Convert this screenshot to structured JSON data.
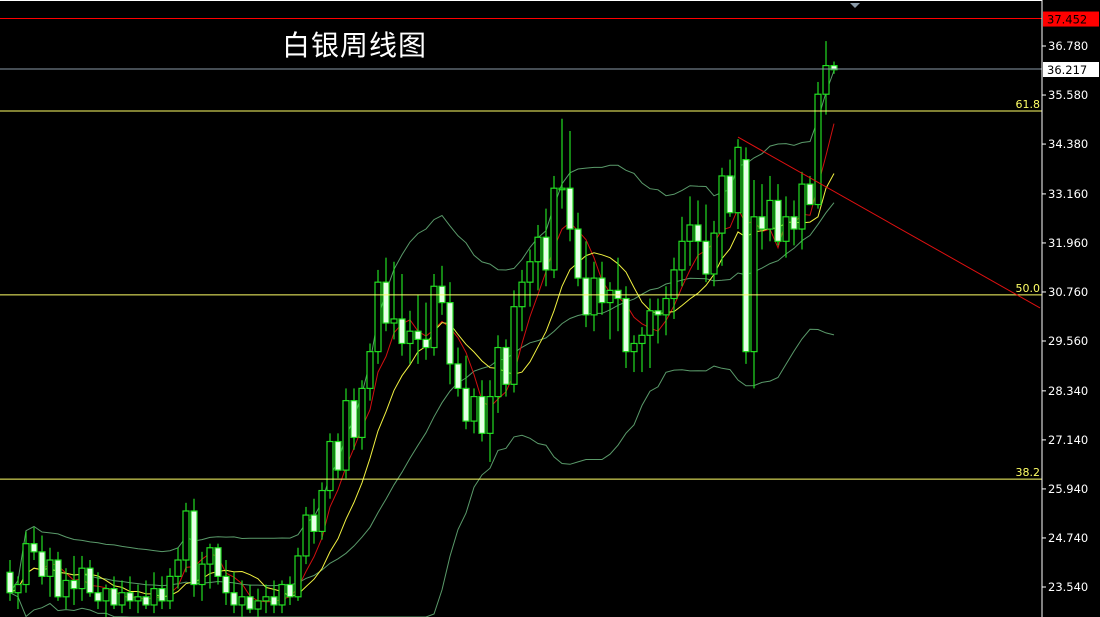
{
  "chart_data": {
    "type": "candlestick",
    "title": "白银周线图",
    "ylim": [
      22.8,
      37.9
    ],
    "grid": false,
    "yticks": [
      "36.780",
      "35.580",
      "34.380",
      "33.160",
      "31.960",
      "30.760",
      "29.560",
      "28.340",
      "27.140",
      "25.940",
      "24.740",
      "23.540"
    ],
    "ohlc": [
      [
        23.9,
        24.2,
        23.2,
        23.4
      ],
      [
        23.4,
        23.8,
        23.0,
        23.6
      ],
      [
        23.6,
        24.9,
        23.4,
        24.6
      ],
      [
        24.6,
        25.0,
        24.2,
        24.4
      ],
      [
        24.4,
        24.8,
        23.6,
        23.8
      ],
      [
        23.8,
        24.5,
        23.3,
        24.2
      ],
      [
        24.2,
        24.4,
        23.2,
        23.3
      ],
      [
        23.3,
        24.0,
        23.0,
        23.7
      ],
      [
        23.7,
        24.3,
        23.1,
        23.5
      ],
      [
        23.5,
        24.3,
        23.2,
        24.0
      ],
      [
        24.0,
        24.2,
        23.3,
        23.4
      ],
      [
        23.4,
        23.9,
        23.0,
        23.2
      ],
      [
        23.2,
        23.6,
        22.8,
        23.5
      ],
      [
        23.5,
        23.8,
        23.0,
        23.1
      ],
      [
        23.1,
        23.7,
        22.9,
        23.4
      ],
      [
        23.4,
        23.8,
        23.0,
        23.2
      ],
      [
        23.2,
        23.6,
        22.9,
        23.3
      ],
      [
        23.3,
        23.7,
        23.0,
        23.1
      ],
      [
        23.1,
        23.9,
        22.9,
        23.5
      ],
      [
        23.5,
        23.8,
        23.0,
        23.2
      ],
      [
        23.2,
        24.0,
        23.0,
        23.8
      ],
      [
        23.8,
        24.5,
        23.5,
        24.2
      ],
      [
        24.2,
        25.6,
        23.9,
        25.4
      ],
      [
        25.4,
        25.7,
        23.3,
        23.6
      ],
      [
        23.6,
        24.4,
        23.2,
        24.1
      ],
      [
        24.1,
        24.6,
        23.5,
        24.5
      ],
      [
        24.5,
        24.6,
        23.6,
        23.8
      ],
      [
        23.8,
        24.2,
        23.1,
        23.4
      ],
      [
        23.4,
        23.9,
        22.9,
        23.1
      ],
      [
        23.1,
        23.7,
        22.8,
        23.3
      ],
      [
        23.3,
        23.6,
        22.9,
        23.0
      ],
      [
        23.0,
        23.5,
        22.7,
        23.2
      ],
      [
        23.2,
        23.6,
        22.9,
        23.3
      ],
      [
        23.3,
        23.7,
        22.9,
        23.1
      ],
      [
        23.1,
        23.7,
        22.9,
        23.6
      ],
      [
        23.6,
        23.8,
        23.1,
        23.3
      ],
      [
        23.3,
        24.5,
        23.2,
        24.3
      ],
      [
        24.3,
        25.5,
        24.1,
        25.3
      ],
      [
        25.3,
        25.7,
        24.6,
        24.9
      ],
      [
        24.9,
        26.1,
        24.7,
        25.9
      ],
      [
        25.9,
        27.3,
        25.7,
        27.1
      ],
      [
        27.1,
        27.3,
        26.2,
        26.4
      ],
      [
        26.4,
        28.4,
        26.2,
        28.1
      ],
      [
        28.1,
        28.4,
        26.9,
        27.2
      ],
      [
        27.2,
        28.6,
        26.9,
        28.4
      ],
      [
        28.4,
        29.5,
        28.1,
        29.3
      ],
      [
        29.3,
        31.3,
        29.0,
        31.0
      ],
      [
        31.0,
        31.6,
        29.8,
        30.0
      ],
      [
        30.0,
        31.5,
        29.6,
        30.1
      ],
      [
        30.1,
        31.2,
        29.2,
        29.5
      ],
      [
        29.5,
        30.3,
        29.0,
        29.8
      ],
      [
        29.8,
        30.7,
        29.0,
        29.6
      ],
      [
        29.6,
        30.5,
        29.1,
        29.4
      ],
      [
        29.4,
        31.2,
        29.2,
        30.9
      ],
      [
        30.9,
        31.4,
        30.2,
        30.5
      ],
      [
        30.5,
        31.0,
        28.5,
        29.0
      ],
      [
        29.0,
        29.4,
        28.2,
        28.4
      ],
      [
        28.4,
        29.2,
        27.4,
        27.6
      ],
      [
        27.6,
        28.4,
        27.3,
        28.2
      ],
      [
        28.2,
        28.6,
        27.1,
        27.3
      ],
      [
        27.3,
        28.6,
        26.6,
        28.2
      ],
      [
        28.2,
        29.7,
        27.8,
        29.4
      ],
      [
        29.4,
        29.6,
        28.2,
        28.5
      ],
      [
        28.5,
        30.8,
        28.3,
        30.4
      ],
      [
        30.4,
        31.3,
        29.8,
        31.0
      ],
      [
        31.0,
        31.8,
        30.4,
        31.5
      ],
      [
        31.5,
        32.4,
        30.8,
        32.1
      ],
      [
        32.1,
        32.8,
        30.9,
        31.3
      ],
      [
        31.3,
        33.6,
        31.1,
        33.3
      ],
      [
        33.3,
        35.0,
        32.8,
        33.3
      ],
      [
        33.3,
        34.7,
        32.0,
        32.3
      ],
      [
        32.3,
        32.7,
        30.9,
        31.1
      ],
      [
        31.1,
        32.0,
        29.9,
        30.2
      ],
      [
        30.2,
        31.5,
        29.8,
        31.1
      ],
      [
        31.1,
        31.5,
        30.2,
        30.5
      ],
      [
        30.5,
        31.0,
        29.6,
        30.8
      ],
      [
        30.8,
        31.6,
        29.8,
        30.6
      ],
      [
        30.6,
        30.9,
        28.9,
        29.3
      ],
      [
        29.3,
        29.7,
        28.8,
        29.5
      ],
      [
        29.5,
        29.9,
        28.8,
        29.7
      ],
      [
        29.7,
        30.6,
        28.9,
        30.3
      ],
      [
        30.3,
        30.6,
        29.5,
        30.2
      ],
      [
        30.2,
        30.9,
        29.7,
        30.6
      ],
      [
        30.6,
        31.6,
        30.1,
        31.3
      ],
      [
        31.3,
        32.6,
        30.9,
        32.0
      ],
      [
        32.0,
        33.1,
        31.4,
        32.4
      ],
      [
        32.4,
        33.0,
        31.3,
        32.0
      ],
      [
        32.0,
        32.9,
        31.0,
        31.2
      ],
      [
        31.2,
        32.5,
        30.9,
        32.2
      ],
      [
        32.2,
        33.8,
        31.4,
        33.6
      ],
      [
        33.6,
        34.0,
        32.6,
        32.7
      ],
      [
        32.7,
        34.5,
        32.3,
        34.3
      ],
      [
        34.0,
        34.3,
        29.0,
        29.3
      ],
      [
        29.3,
        33.5,
        28.4,
        32.6
      ],
      [
        32.6,
        33.4,
        31.8,
        32.3
      ],
      [
        32.3,
        33.6,
        32.0,
        33.0
      ],
      [
        33.0,
        33.4,
        31.9,
        32.0
      ],
      [
        32.0,
        33.1,
        31.6,
        32.6
      ],
      [
        32.6,
        33.0,
        31.9,
        32.3
      ],
      [
        32.3,
        33.7,
        31.8,
        33.4
      ],
      [
        33.4,
        33.6,
        32.9,
        32.9
      ],
      [
        32.9,
        35.9,
        32.8,
        35.6
      ],
      [
        35.6,
        36.9,
        35.1,
        36.3
      ],
      [
        36.3,
        36.4,
        36.1,
        36.2
      ]
    ],
    "moving_averages": [
      {
        "period": 5,
        "color": "#d01010"
      },
      {
        "period": 10,
        "color": "#f0f040"
      }
    ],
    "bollinger": {
      "period": 20,
      "stddev": 2,
      "color": "#5a9a6a"
    },
    "price_lines": [
      {
        "label": "37.452",
        "price": 37.452,
        "color": "#ff0000",
        "tag_bg": "#ff0000",
        "tag_fg": "#000000"
      },
      {
        "label": "36.217",
        "price": 36.217,
        "color": "#8a9aa8",
        "tag_bg": "#ffffff",
        "tag_fg": "#000000"
      }
    ],
    "fib_levels": [
      {
        "label": "61.8",
        "price": 35.19,
        "color": "#ffff66"
      },
      {
        "label": "50.0",
        "price": 30.69,
        "color": "#ffff66"
      },
      {
        "label": "38.2",
        "price": 26.18,
        "color": "#ffff66"
      }
    ],
    "trendline": {
      "from": [
        91,
        34.55
      ],
      "to": [
        128.75,
        30.37
      ],
      "color": "#e01010"
    },
    "colors": {
      "background": "#000000",
      "bull_outline": "#22dd22",
      "bear_fill": "#e8ffe8",
      "axis_text": "#ffffff",
      "axis_line": "#ffffff"
    }
  }
}
